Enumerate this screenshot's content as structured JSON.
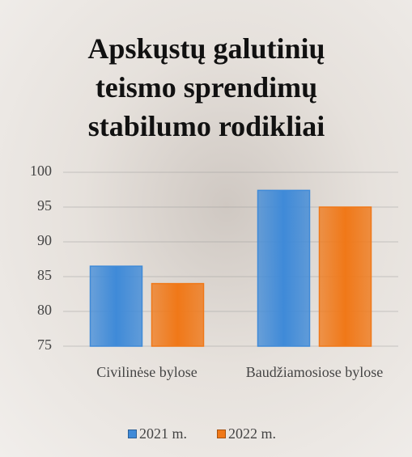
{
  "chart_data": {
    "type": "bar",
    "title": "Apskųstų galutinių teismo sprendimų stabilumo rodikliai",
    "categories": [
      "Civilinėse bylose",
      "Baudžiamosiose bylose"
    ],
    "series": [
      {
        "name": "2021 m.",
        "color": "#3f8ad8",
        "values": [
          86.5,
          97.4
        ]
      },
      {
        "name": "2022 m.",
        "color": "#f07818",
        "values": [
          84,
          95
        ]
      }
    ],
    "ylim": [
      75,
      100
    ],
    "yticks": [
      75,
      80,
      85,
      90,
      95,
      100
    ],
    "grid": true,
    "legend": "bottom"
  }
}
